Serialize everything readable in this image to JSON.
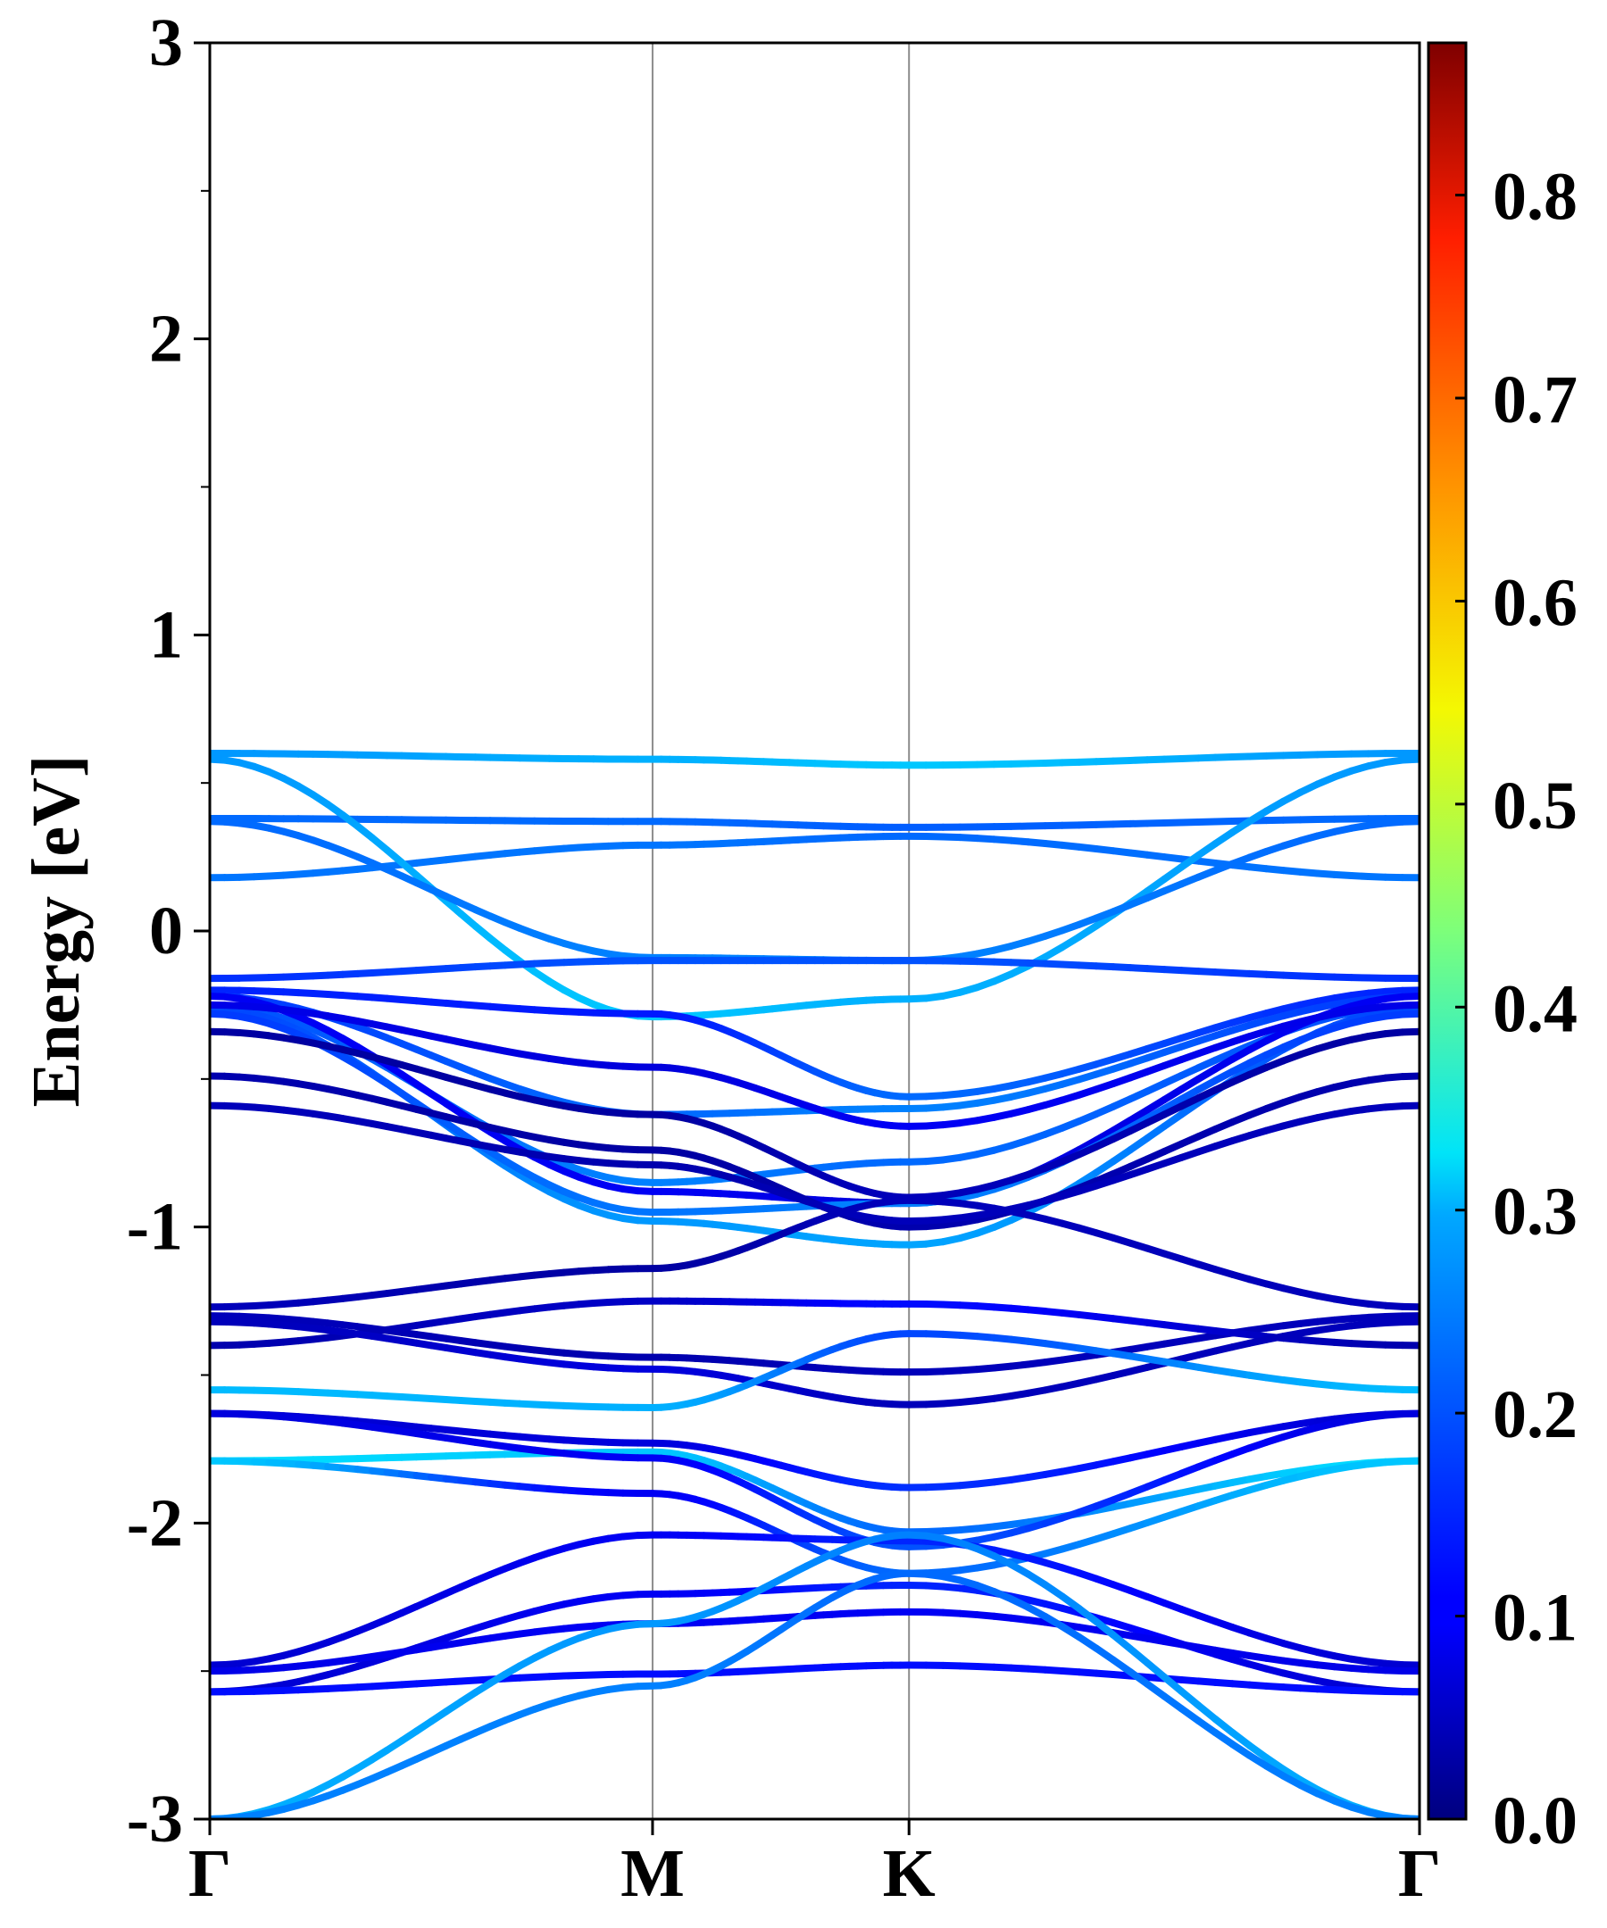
{
  "chart_data": {
    "type": "line",
    "title": "",
    "xlabel": "",
    "ylabel": "Energy [eV]",
    "ylim": [
      -3,
      3
    ],
    "yticks": [
      "3",
      "2",
      "1",
      "0",
      "-1",
      "-2",
      "-3"
    ],
    "ytick_values": [
      3,
      2,
      1,
      0,
      -1,
      -2,
      -3
    ],
    "high_symmetry_points": [
      {
        "label": "Γ",
        "k": 0.0
      },
      {
        "label": "M",
        "k": 0.366
      },
      {
        "label": "K",
        "k": 0.578
      },
      {
        "label": "Γ",
        "k": 1.0
      }
    ],
    "colorbar": {
      "colormap": "jet",
      "range": [
        0.0,
        0.875
      ],
      "ticks": [
        "0.0",
        "0.1",
        "0.2",
        "0.3",
        "0.4",
        "0.5",
        "0.6",
        "0.7",
        "0.8"
      ],
      "tick_values": [
        0.0,
        0.1,
        0.2,
        0.3,
        0.4,
        0.5,
        0.6,
        0.7,
        0.8
      ]
    },
    "grid": false,
    "bands": [
      {
        "E": [
          0.6,
          0.58,
          0.56,
          0.6
        ],
        "w": [
          0.24,
          0.26,
          0.28,
          0.24
        ]
      },
      {
        "E": [
          0.38,
          0.37,
          0.35,
          0.38
        ],
        "w": [
          0.2,
          0.2,
          0.19,
          0.2
        ]
      },
      {
        "E": [
          0.18,
          0.29,
          0.32,
          0.18
        ],
        "w": [
          0.21,
          0.21,
          0.2,
          0.21
        ]
      },
      {
        "E": [
          0.58,
          -0.29,
          -0.23,
          0.58
        ],
        "w": [
          0.24,
          0.28,
          0.26,
          0.24
        ]
      },
      {
        "E": [
          0.37,
          -0.09,
          -0.1,
          0.37
        ],
        "w": [
          0.2,
          0.22,
          0.22,
          0.2
        ]
      },
      {
        "E": [
          -0.16,
          -0.1,
          -0.1,
          -0.16
        ],
        "w": [
          0.15,
          0.18,
          0.18,
          0.15
        ]
      },
      {
        "E": [
          -0.2,
          -0.28,
          -0.56,
          -0.2
        ],
        "w": [
          0.14,
          0.13,
          0.2,
          0.14
        ]
      },
      {
        "E": [
          -0.22,
          -0.62,
          -0.6,
          -0.22
        ],
        "w": [
          0.16,
          0.2,
          0.22,
          0.16
        ]
      },
      {
        "E": [
          -0.25,
          -0.85,
          -0.78,
          -0.25
        ],
        "w": [
          0.18,
          0.22,
          0.2,
          0.18
        ]
      },
      {
        "E": [
          -0.22,
          -0.88,
          -0.92,
          -0.22
        ],
        "w": [
          0.1,
          0.1,
          0.08,
          0.1
        ]
      },
      {
        "E": [
          -0.26,
          -0.98,
          -1.06,
          -0.26
        ],
        "w": [
          0.17,
          0.24,
          0.25,
          0.17
        ]
      },
      {
        "E": [
          -0.28,
          -0.95,
          -0.92,
          -0.28
        ],
        "w": [
          0.16,
          0.21,
          0.22,
          0.16
        ]
      },
      {
        "E": [
          -0.25,
          -0.46,
          -0.66,
          -0.25
        ],
        "w": [
          0.09,
          0.08,
          0.1,
          0.09
        ]
      },
      {
        "E": [
          -0.34,
          -0.62,
          -0.9,
          -0.34
        ],
        "w": [
          0.03,
          0.03,
          0.05,
          0.03
        ]
      },
      {
        "E": [
          -0.49,
          -0.74,
          -1.0,
          -0.49
        ],
        "w": [
          0.04,
          0.03,
          0.04,
          0.04
        ]
      },
      {
        "E": [
          -0.59,
          -0.79,
          -0.98,
          -0.59
        ],
        "w": [
          0.05,
          0.04,
          0.05,
          0.05
        ]
      },
      {
        "E": [
          -1.27,
          -1.14,
          -0.91,
          -1.27
        ],
        "w": [
          0.05,
          0.03,
          0.05,
          0.05
        ]
      },
      {
        "E": [
          -1.3,
          -1.44,
          -1.49,
          -1.3
        ],
        "w": [
          0.05,
          0.04,
          0.05,
          0.05
        ]
      },
      {
        "E": [
          -1.4,
          -1.25,
          -1.26,
          -1.4
        ],
        "w": [
          0.04,
          0.06,
          0.12,
          0.04
        ]
      },
      {
        "E": [
          -1.32,
          -1.48,
          -1.6,
          -1.32
        ],
        "w": [
          0.05,
          0.08,
          0.05,
          0.05
        ]
      },
      {
        "E": [
          -1.55,
          -1.61,
          -1.36,
          -1.55
        ],
        "w": [
          0.27,
          0.26,
          0.17,
          0.27
        ]
      },
      {
        "E": [
          -1.63,
          -1.73,
          -1.88,
          -1.63
        ],
        "w": [
          0.07,
          0.08,
          0.15,
          0.07
        ]
      },
      {
        "E": [
          -1.79,
          -1.76,
          -2.03,
          -1.79
        ],
        "w": [
          0.3,
          0.28,
          0.2,
          0.3
        ]
      },
      {
        "E": [
          -1.63,
          -1.78,
          -2.08,
          -1.63
        ],
        "w": [
          0.08,
          0.1,
          0.18,
          0.08
        ]
      },
      {
        "E": [
          -1.79,
          -1.9,
          -2.17,
          -1.79
        ],
        "w": [
          0.28,
          0.1,
          0.2,
          0.28
        ]
      },
      {
        "E": [
          -2.48,
          -2.04,
          -2.06,
          -2.48
        ],
        "w": [
          0.07,
          0.1,
          0.14,
          0.07
        ]
      },
      {
        "E": [
          -2.57,
          -2.24,
          -2.21,
          -2.57
        ],
        "w": [
          0.07,
          0.1,
          0.14,
          0.07
        ]
      },
      {
        "E": [
          -2.5,
          -2.34,
          -2.3,
          -2.5
        ],
        "w": [
          0.09,
          0.1,
          0.1,
          0.09
        ]
      },
      {
        "E": [
          -2.57,
          -2.51,
          -2.48,
          -2.57
        ],
        "w": [
          0.12,
          0.12,
          0.12,
          0.12
        ]
      },
      {
        "E": [
          -3.0,
          -2.34,
          -2.04,
          -3.0
        ],
        "w": [
          0.26,
          0.24,
          0.22,
          0.26
        ]
      },
      {
        "E": [
          -3.0,
          -2.55,
          -2.17,
          -3.0
        ],
        "w": [
          0.22,
          0.22,
          0.2,
          0.22
        ]
      }
    ]
  }
}
